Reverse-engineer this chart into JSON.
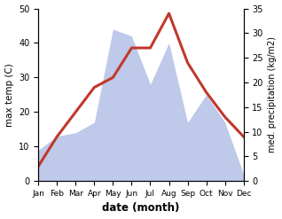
{
  "months": [
    "Jan",
    "Feb",
    "Mar",
    "Apr",
    "May",
    "Jun",
    "Jul",
    "Aug",
    "Sep",
    "Oct",
    "Nov",
    "Dec"
  ],
  "temperature": [
    3,
    9,
    14,
    19,
    21,
    27,
    27,
    34,
    24,
    18,
    13,
    9
  ],
  "precipitation": [
    9,
    13,
    14,
    17,
    44,
    42,
    28,
    40,
    17,
    25,
    17,
    2
  ],
  "temp_color": "#c0392b",
  "precip_color_fill": "#b8c4e8",
  "ylabel_left": "max temp (C)",
  "ylabel_right": "med. precipitation (kg/m2)",
  "xlabel": "date (month)",
  "ylim_left": [
    0,
    50
  ],
  "ylim_right": [
    0,
    35
  ],
  "yticks_left": [
    0,
    10,
    20,
    30,
    40,
    50
  ],
  "yticks_right": [
    0,
    5,
    10,
    15,
    20,
    25,
    30,
    35
  ],
  "background_color": "#ffffff",
  "line_width": 2.2
}
